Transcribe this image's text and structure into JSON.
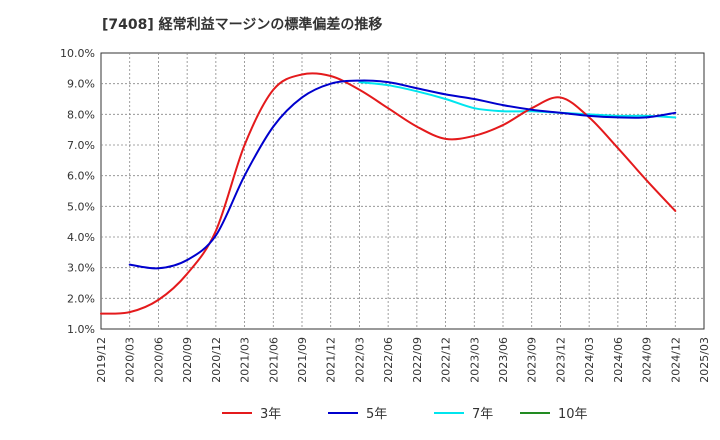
{
  "chart_data": {
    "type": "line",
    "title": "[7408]  経常利益マージンの標準偏差の推移",
    "xlabel": "",
    "ylabel": "",
    "ylim": [
      1.0,
      10.0
    ],
    "x_ticks": [
      "2019/12",
      "2020/03",
      "2020/06",
      "2020/09",
      "2020/12",
      "2021/03",
      "2021/06",
      "2021/09",
      "2021/12",
      "2022/03",
      "2022/06",
      "2022/09",
      "2022/12",
      "2023/03",
      "2023/06",
      "2023/09",
      "2023/12",
      "2024/03",
      "2024/06",
      "2024/09",
      "2024/12",
      "2025/03"
    ],
    "y_ticks": [
      1.0,
      2.0,
      3.0,
      4.0,
      5.0,
      6.0,
      7.0,
      8.0,
      9.0,
      10.0
    ],
    "y_tick_labels": [
      "1.0%",
      "2.0%",
      "3.0%",
      "4.0%",
      "5.0%",
      "6.0%",
      "7.0%",
      "8.0%",
      "9.0%",
      "10.0%"
    ],
    "grid": true,
    "legend_position": "bottom",
    "series": [
      {
        "name": "3年",
        "color": "#e41a1c",
        "x": [
          "2019/12",
          "2020/03",
          "2020/06",
          "2020/09",
          "2020/12",
          "2021/03",
          "2021/06",
          "2021/09",
          "2021/12",
          "2022/03",
          "2022/06",
          "2022/09",
          "2022/12",
          "2023/03",
          "2023/06",
          "2023/09",
          "2023/12",
          "2024/03",
          "2024/06",
          "2024/09",
          "2024/12"
        ],
        "values": [
          1.5,
          1.55,
          1.95,
          2.8,
          4.2,
          7.0,
          8.8,
          9.3,
          9.25,
          8.8,
          8.2,
          7.6,
          7.2,
          7.3,
          7.65,
          8.2,
          8.55,
          7.9,
          6.9,
          5.85,
          4.85
        ]
      },
      {
        "name": "5年",
        "color": "#0000cd",
        "x": [
          "2020/03",
          "2020/06",
          "2020/09",
          "2020/12",
          "2021/03",
          "2021/06",
          "2021/09",
          "2021/12",
          "2022/03",
          "2022/06",
          "2022/09",
          "2022/12",
          "2023/03",
          "2023/06",
          "2023/09",
          "2023/12",
          "2024/03",
          "2024/06",
          "2024/09",
          "2024/12"
        ],
        "values": [
          3.1,
          2.98,
          3.25,
          4.05,
          6.0,
          7.6,
          8.55,
          9.0,
          9.1,
          9.05,
          8.85,
          8.65,
          8.5,
          8.3,
          8.15,
          8.05,
          7.95,
          7.9,
          7.9,
          8.05
        ]
      },
      {
        "name": "7年",
        "color": "#00e5ee",
        "x": [
          "2022/03",
          "2022/06",
          "2022/09",
          "2022/12",
          "2023/03",
          "2023/06",
          "2023/09",
          "2023/12",
          "2024/03",
          "2024/06",
          "2024/09",
          "2024/12"
        ],
        "values": [
          9.05,
          8.95,
          8.75,
          8.5,
          8.2,
          8.1,
          8.1,
          8.05,
          8.0,
          7.95,
          7.95,
          7.9
        ]
      },
      {
        "name": "10年",
        "color": "#228b22",
        "x": [],
        "values": []
      }
    ]
  }
}
